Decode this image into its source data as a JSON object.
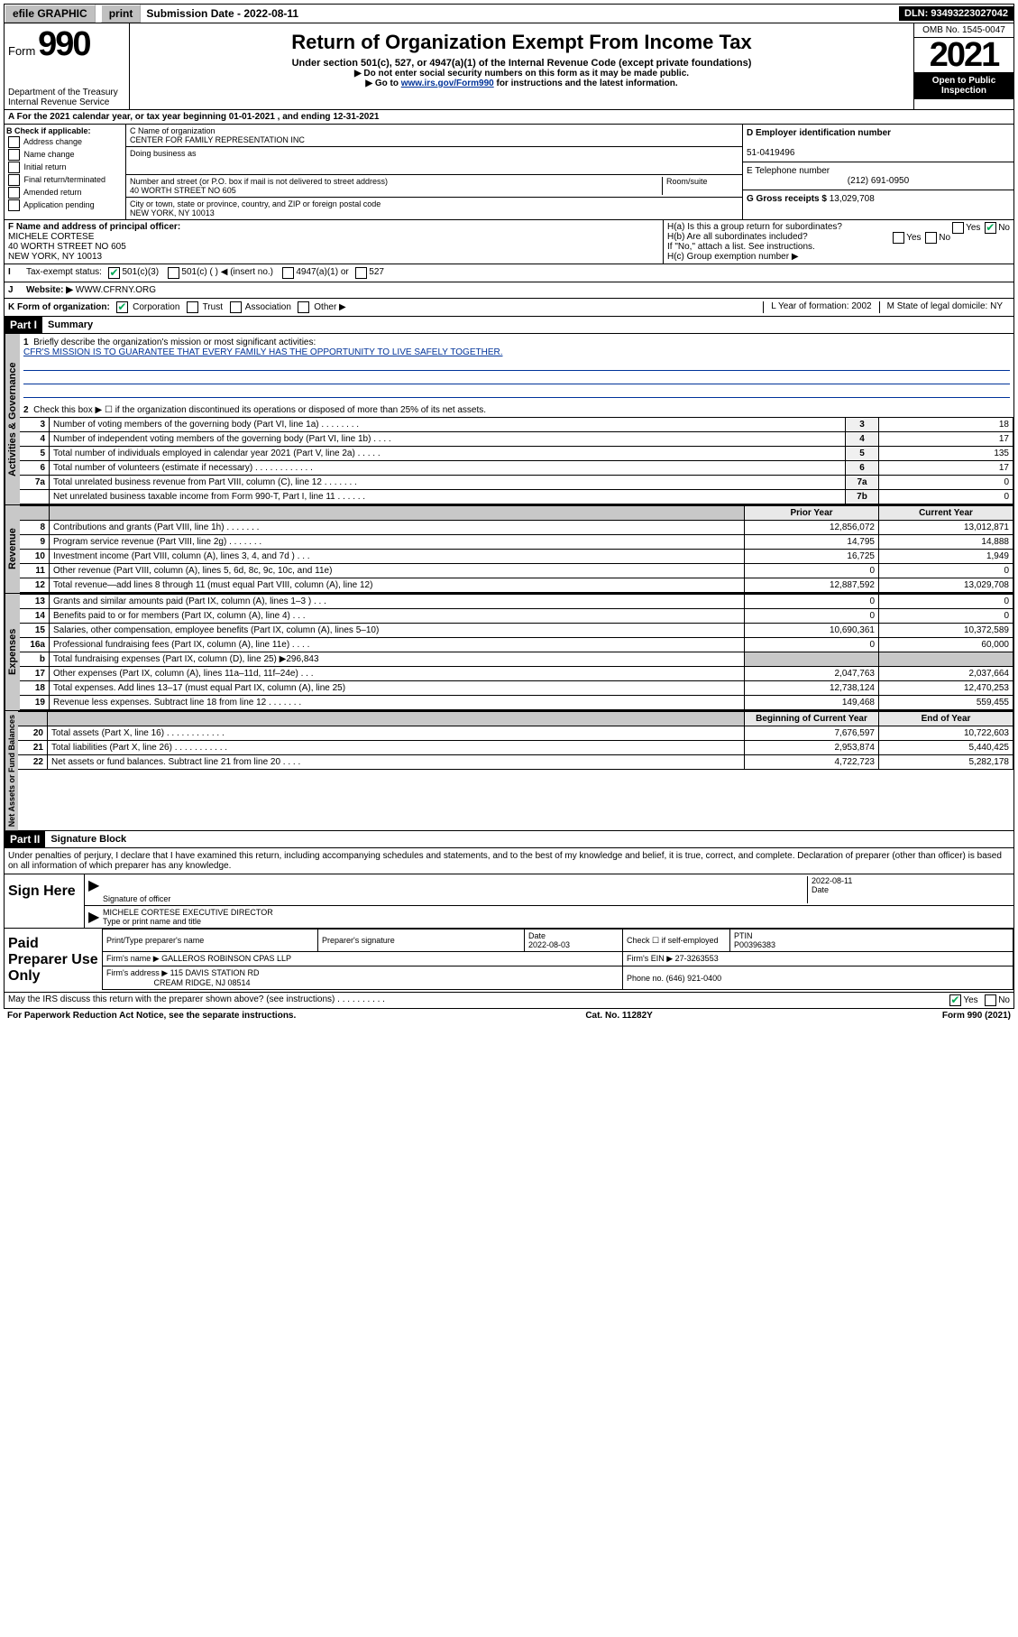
{
  "topbar": {
    "efile": "efile GRAPHIC",
    "print": "print",
    "submission": "Submission Date - 2022-08-11",
    "dln": "DLN: 93493223027042"
  },
  "header": {
    "form_label": "Form",
    "form_number": "990",
    "title": "Return of Organization Exempt From Income Tax",
    "sub1": "Under section 501(c), 527, or 4947(a)(1) of the Internal Revenue Code (except private foundations)",
    "sub2": "▶ Do not enter social security numbers on this form as it may be made public.",
    "sub3_pre": "▶ Go to ",
    "sub3_link": "www.irs.gov/Form990",
    "sub3_post": " for instructions and the latest information.",
    "dept": "Department of the Treasury\nInternal Revenue Service",
    "omb": "OMB No. 1545-0047",
    "year": "2021",
    "inspection": "Open to Public Inspection"
  },
  "a_row": "A For the 2021 calendar year, or tax year beginning 01-01-2021   , and ending 12-31-2021",
  "col_b": {
    "title": "B Check if applicable:",
    "items": [
      "Address change",
      "Name change",
      "Initial return",
      "Final return/terminated",
      "Amended return",
      "Application pending"
    ]
  },
  "c": {
    "name_label": "C Name of organization",
    "name": "CENTER FOR FAMILY REPRESENTATION INC",
    "dba_label": "Doing business as",
    "addr_label": "Number and street (or P.O. box if mail is not delivered to street address)",
    "room_label": "Room/suite",
    "addr": "40 WORTH STREET NO 605",
    "city_label": "City or town, state or province, country, and ZIP or foreign postal code",
    "city": "NEW YORK, NY  10013"
  },
  "d": {
    "label": "D Employer identification number",
    "value": "51-0419496"
  },
  "e": {
    "label": "E Telephone number",
    "value": "(212) 691-0950"
  },
  "g": {
    "label": "G Gross receipts $",
    "value": "13,029,708"
  },
  "f": {
    "label": "F Name and address of principal officer:",
    "name": "MICHELE CORTESE",
    "addr1": "40 WORTH STREET NO 605",
    "addr2": "NEW YORK, NY  10013"
  },
  "h": {
    "a": "H(a)  Is this a group return for subordinates?",
    "b": "H(b)  Are all subordinates included?",
    "note": "If \"No,\" attach a list. See instructions.",
    "c": "H(c)  Group exemption number ▶",
    "yes": "Yes",
    "no": "No"
  },
  "i": {
    "label": "Tax-exempt status:",
    "opts": [
      "501(c)(3)",
      "501(c) (   ) ◀ (insert no.)",
      "4947(a)(1) or",
      "527"
    ]
  },
  "j": {
    "label": "Website: ▶",
    "value": "WWW.CFRNY.ORG"
  },
  "k": {
    "label": "K Form of organization:",
    "opts": [
      "Corporation",
      "Trust",
      "Association",
      "Other ▶"
    ],
    "l": "L Year of formation: 2002",
    "m": "M State of legal domicile: NY"
  },
  "part1": {
    "header": "Part I",
    "title": "Summary",
    "q1": "Briefly describe the organization's mission or most significant activities:",
    "mission": "CFR'S MISSION IS TO GUARANTEE THAT EVERY FAMILY HAS THE OPPORTUNITY TO LIVE SAFELY TOGETHER.",
    "q2": "Check this box ▶ ☐  if the organization discontinued its operations or disposed of more than 25% of its net assets.",
    "rows_gov": [
      {
        "n": "3",
        "d": "Number of voting members of the governing body (Part VI, line 1a)   .   .   .   .   .   .   .   .",
        "b": "3",
        "v": "18"
      },
      {
        "n": "4",
        "d": "Number of independent voting members of the governing body (Part VI, line 1b)    .   .   .   .",
        "b": "4",
        "v": "17"
      },
      {
        "n": "5",
        "d": "Total number of individuals employed in calendar year 2021 (Part V, line 2a)    .   .   .   .   .",
        "b": "5",
        "v": "135"
      },
      {
        "n": "6",
        "d": "Total number of volunteers (estimate if necessary)   .   .   .   .   .   .   .   .   .   .   .   .",
        "b": "6",
        "v": "17"
      },
      {
        "n": "7a",
        "d": "Total unrelated business revenue from Part VIII, column (C), line 12   .   .   .   .   .   .   .",
        "b": "7a",
        "v": "0"
      },
      {
        "n": "",
        "d": "Net unrelated business taxable income from Form 990-T, Part I, line 11   .   .   .   .   .   .",
        "b": "7b",
        "v": "0"
      }
    ],
    "hdr_prior": "Prior Year",
    "hdr_current": "Current Year",
    "rows_rev": [
      {
        "n": "8",
        "d": "Contributions and grants (Part VIII, line 1h)   .   .   .   .   .   .   .",
        "p": "12,856,072",
        "c": "13,012,871"
      },
      {
        "n": "9",
        "d": "Program service revenue (Part VIII, line 2g)   .   .   .   .   .   .   .",
        "p": "14,795",
        "c": "14,888"
      },
      {
        "n": "10",
        "d": "Investment income (Part VIII, column (A), lines 3, 4, and 7d )   .   .   .",
        "p": "16,725",
        "c": "1,949"
      },
      {
        "n": "11",
        "d": "Other revenue (Part VIII, column (A), lines 5, 6d, 8c, 9c, 10c, and 11e)",
        "p": "0",
        "c": "0"
      },
      {
        "n": "12",
        "d": "Total revenue—add lines 8 through 11 (must equal Part VIII, column (A), line 12)",
        "p": "12,887,592",
        "c": "13,029,708"
      }
    ],
    "rows_exp": [
      {
        "n": "13",
        "d": "Grants and similar amounts paid (Part IX, column (A), lines 1–3 )   .   .   .",
        "p": "0",
        "c": "0"
      },
      {
        "n": "14",
        "d": "Benefits paid to or for members (Part IX, column (A), line 4)   .   .   .",
        "p": "0",
        "c": "0"
      },
      {
        "n": "15",
        "d": "Salaries, other compensation, employee benefits (Part IX, column (A), lines 5–10)",
        "p": "10,690,361",
        "c": "10,372,589"
      },
      {
        "n": "16a",
        "d": "Professional fundraising fees (Part IX, column (A), line 11e)   .   .   .   .",
        "p": "0",
        "c": "60,000"
      },
      {
        "n": "b",
        "d": "Total fundraising expenses (Part IX, column (D), line 25) ▶296,843",
        "p": "",
        "c": "",
        "grey": true
      },
      {
        "n": "17",
        "d": "Other expenses (Part IX, column (A), lines 11a–11d, 11f–24e)   .   .   .",
        "p": "2,047,763",
        "c": "2,037,664"
      },
      {
        "n": "18",
        "d": "Total expenses. Add lines 13–17 (must equal Part IX, column (A), line 25)",
        "p": "12,738,124",
        "c": "12,470,253"
      },
      {
        "n": "19",
        "d": "Revenue less expenses. Subtract line 18 from line 12   .   .   .   .   .   .   .",
        "p": "149,468",
        "c": "559,455"
      }
    ],
    "hdr_beg": "Beginning of Current Year",
    "hdr_end": "End of Year",
    "rows_net": [
      {
        "n": "20",
        "d": "Total assets (Part X, line 16)   .   .   .   .   .   .   .   .   .   .   .   .",
        "p": "7,676,597",
        "c": "10,722,603"
      },
      {
        "n": "21",
        "d": "Total liabilities (Part X, line 26)   .   .   .   .   .   .   .   .   .   .   .",
        "p": "2,953,874",
        "c": "5,440,425"
      },
      {
        "n": "22",
        "d": "Net assets or fund balances. Subtract line 21 from line 20   .   .   .   .",
        "p": "4,722,723",
        "c": "5,282,178"
      }
    ],
    "side_gov": "Activities & Governance",
    "side_rev": "Revenue",
    "side_exp": "Expenses",
    "side_net": "Net Assets or Fund Balances"
  },
  "part2": {
    "header": "Part II",
    "title": "Signature Block",
    "decl": "Under penalties of perjury, I declare that I have examined this return, including accompanying schedules and statements, and to the best of my knowledge and belief, it is true, correct, and complete. Declaration of preparer (other than officer) is based on all information of which preparer has any knowledge.",
    "sign_here": "Sign Here",
    "sig_officer": "Signature of officer",
    "sig_date": "2022-08-11",
    "date_label": "Date",
    "officer_name": "MICHELE CORTESE EXECUTIVE DIRECTOR",
    "type_label": "Type or print name and title",
    "paid": "Paid Preparer Use Only",
    "prep_name_label": "Print/Type preparer's name",
    "prep_sig_label": "Preparer's signature",
    "prep_date_label": "Date",
    "prep_date": "2022-08-03",
    "check_label": "Check ☐ if self-employed",
    "ptin_label": "PTIN",
    "ptin": "P00396383",
    "firm_name_label": "Firm's name    ▶",
    "firm_name": "GALLEROS ROBINSON CPAS LLP",
    "firm_ein_label": "Firm's EIN ▶",
    "firm_ein": "27-3263553",
    "firm_addr_label": "Firm's address ▶",
    "firm_addr1": "115 DAVIS STATION RD",
    "firm_addr2": "CREAM RIDGE, NJ  08514",
    "phone_label": "Phone no.",
    "phone": "(646) 921-0400"
  },
  "footer": {
    "discuss": "May the IRS discuss this return with the preparer shown above? (see instructions)   .   .   .   .   .   .   .   .   .   .",
    "yes": "Yes",
    "no": "No",
    "paperwork": "For Paperwork Reduction Act Notice, see the separate instructions.",
    "cat": "Cat. No. 11282Y",
    "form": "Form 990 (2021)"
  }
}
